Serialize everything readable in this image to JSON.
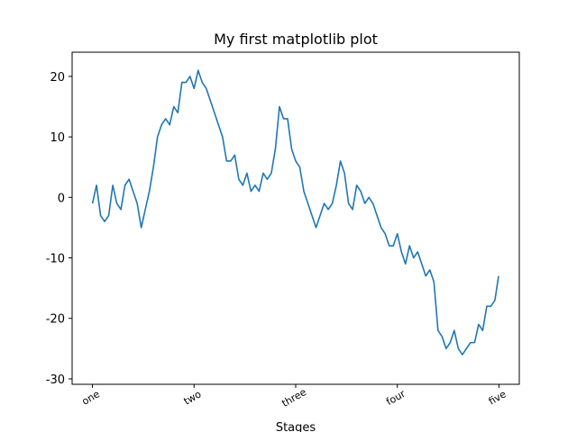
{
  "chart_data": {
    "type": "line",
    "title": "My first matplotlib plot",
    "x_label": "Stages",
    "x": [
      0,
      10,
      20,
      30,
      40,
      50,
      60,
      70,
      80,
      90,
      100,
      110,
      120,
      130,
      140,
      150,
      160,
      170,
      180,
      190,
      200,
      210,
      220,
      230,
      240,
      250,
      260,
      270,
      280,
      290,
      300,
      310,
      320,
      330,
      340,
      350,
      360,
      370,
      380,
      390,
      400,
      410,
      420,
      430,
      440,
      450,
      460,
      470,
      480,
      490,
      500,
      510,
      520,
      530,
      540,
      550,
      560,
      570,
      580,
      590,
      600,
      610,
      620,
      630,
      640,
      650,
      660,
      670,
      680,
      690,
      700,
      710,
      720,
      730,
      740,
      750,
      760,
      770,
      780,
      790,
      800,
      810,
      820,
      830,
      840,
      850,
      860,
      870,
      880,
      890,
      900,
      910,
      920,
      930,
      940,
      950,
      960,
      970,
      980,
      990,
      999
    ],
    "series": [
      {
        "color": "#1f77b4",
        "values": [
          -1,
          2,
          -3,
          -4,
          -3,
          2,
          -1,
          -2,
          2,
          3,
          1,
          -1,
          -5,
          -2,
          1,
          5,
          10,
          12,
          13,
          12,
          15,
          14,
          19,
          19,
          20,
          18,
          21,
          19,
          18,
          16,
          14,
          12,
          10,
          6,
          6,
          7,
          3,
          2,
          4,
          1,
          2,
          1,
          4,
          3,
          4,
          8,
          15,
          13,
          13,
          8,
          6,
          5,
          1,
          -1,
          -3,
          -5,
          -3,
          -1,
          -2,
          -1,
          2,
          6,
          4,
          -1,
          -2,
          2,
          1,
          -1,
          0,
          -1,
          -3,
          -5,
          -6,
          -8,
          -8,
          -6,
          -9,
          -11,
          -8,
          -10,
          -9,
          -11,
          -13,
          -12,
          -14,
          -22,
          -23,
          -25,
          -24,
          -22,
          -25,
          -26,
          -25,
          -24,
          -24,
          -21,
          -22,
          -18,
          -18,
          -17,
          -13
        ]
      }
    ],
    "xlim": [
      -50,
      1050
    ],
    "ylim": [
      -30.9,
      24.0
    ],
    "xticks": [
      {
        "value": 0,
        "label": "one"
      },
      {
        "value": 250,
        "label": "two"
      },
      {
        "value": 500,
        "label": "three"
      },
      {
        "value": 750,
        "label": "four"
      },
      {
        "value": 1000,
        "label": "five"
      }
    ],
    "yticks": [
      -30,
      -20,
      -10,
      0,
      10,
      20
    ]
  }
}
